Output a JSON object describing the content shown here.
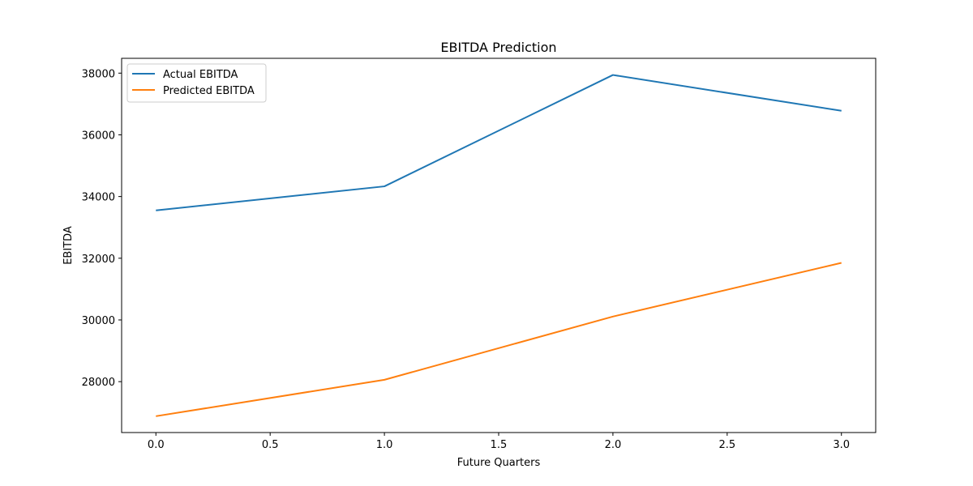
{
  "chart_data": {
    "type": "line",
    "title": "EBITDA Prediction",
    "xlabel": "Future Quarters",
    "ylabel": "EBITDA",
    "x": [
      0,
      1,
      2,
      3
    ],
    "xlim": [
      -0.15,
      3.15
    ],
    "ylim": [
      26350,
      38480
    ],
    "xticks": [
      0.0,
      0.5,
      1.0,
      1.5,
      2.0,
      2.5,
      3.0
    ],
    "xtick_labels": [
      "0.0",
      "0.5",
      "1.0",
      "1.5",
      "2.0",
      "2.5",
      "3.0"
    ],
    "yticks": [
      28000,
      30000,
      32000,
      34000,
      36000,
      38000
    ],
    "ytick_labels": [
      "28000",
      "30000",
      "32000",
      "34000",
      "36000",
      "38000"
    ],
    "grid": false,
    "legend_position": "top-left",
    "series": [
      {
        "name": "Actual EBITDA",
        "color": "#1f77b4",
        "values": [
          33550,
          34330,
          37940,
          36780
        ]
      },
      {
        "name": "Predicted EBITDA",
        "color": "#ff7f0e",
        "values": [
          26880,
          28060,
          30110,
          31850
        ]
      }
    ]
  }
}
